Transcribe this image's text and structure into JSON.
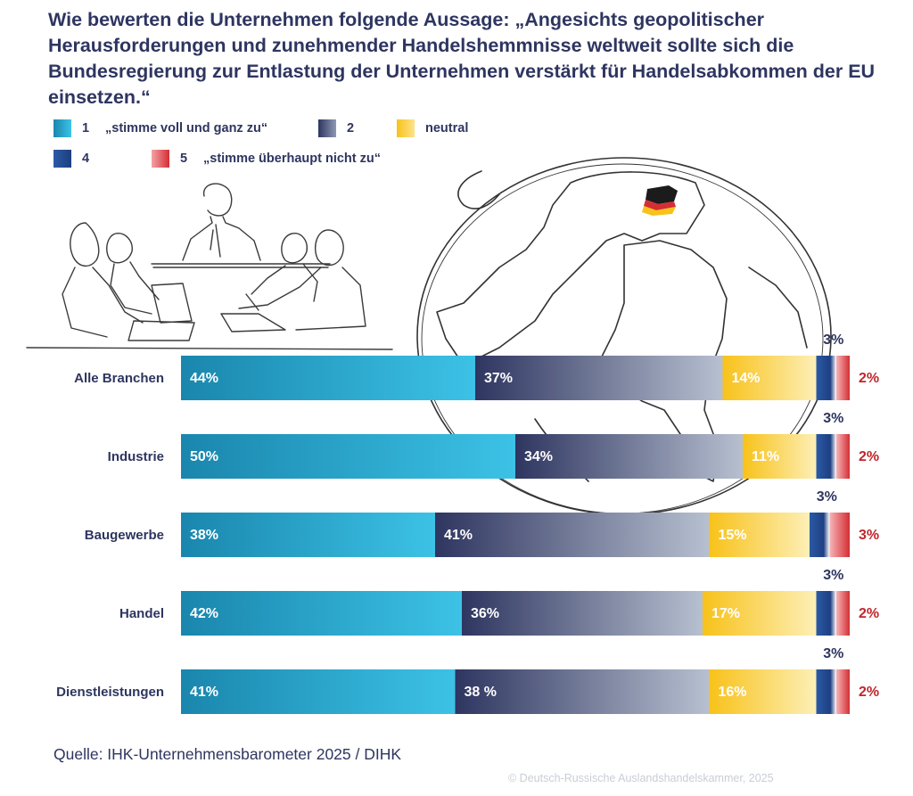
{
  "title": "Wie bewerten die Unternehmen folgende Aussage: „Angesichts geopolitischer Herausforderungen und zunehmender Handelshemmnisse weltweit sollte sich die Bundesregierung zur Entlastung der Unternehmen verstärkt für Handelsabkommen der EU einsetzen.“",
  "legend": [
    {
      "code": "1",
      "label": "„stimme voll und ganz zu“",
      "color": "#2aaed2"
    },
    {
      "code": "2",
      "label": "",
      "color": "#2e3560"
    },
    {
      "code": "",
      "label": "neutral",
      "color": "#f8c21a"
    },
    {
      "code": "4",
      "label": "",
      "color": "#2a5aa6"
    },
    {
      "code": "5",
      "label": "„stimme überhaupt nicht zu“",
      "color": "#d42e34"
    }
  ],
  "colors": {
    "s1_dark": "#1a86ad",
    "s1_light": "#3cc2e6",
    "s2_dark": "#2e3560",
    "s2_light": "#b7c0d0",
    "s3_dark": "#f8c21a",
    "s3_light": "#fdefb6",
    "s4": "#2a5aa6",
    "s5": "#d42e34",
    "text_dark": "#2e3560",
    "text_red": "#c0262c"
  },
  "chart_data": {
    "type": "bar",
    "orientation": "horizontal",
    "stacked": true,
    "categories": [
      "Alle Branchen",
      "Industrie",
      "Baugewerbe",
      "Handel",
      "Dienstleistungen"
    ],
    "series": [
      {
        "name": "1 „stimme voll und ganz zu“",
        "values": [
          44,
          50,
          38,
          42,
          41
        ],
        "labels": [
          "44%",
          "50%",
          "38%",
          "42%",
          "41%"
        ]
      },
      {
        "name": "2",
        "values": [
          37,
          34,
          41,
          36,
          38
        ],
        "labels": [
          "37%",
          "34%",
          "41%",
          "36%",
          "38 %"
        ]
      },
      {
        "name": "neutral",
        "values": [
          14,
          11,
          15,
          17,
          16
        ],
        "labels": [
          "14%",
          "11%",
          "15%",
          "17%",
          "16%"
        ]
      },
      {
        "name": "4",
        "values": [
          3,
          3,
          3,
          3,
          3
        ],
        "labels": [
          "3%",
          "3%",
          "3%",
          "3%",
          "3%"
        ]
      },
      {
        "name": "5 „stimme überhaupt nicht zu“",
        "values": [
          2,
          2,
          3,
          2,
          2
        ],
        "labels": [
          "2%",
          "2%",
          "3%",
          "2%",
          "2%"
        ]
      }
    ],
    "xlim": [
      0,
      100
    ],
    "legend_position": "top-left"
  },
  "source": "Quelle: IHK-Unternehmensbarometer 2025 / DIHK",
  "copyright": "© Deutsch-Russische Auslandshandelskammer, 2025"
}
